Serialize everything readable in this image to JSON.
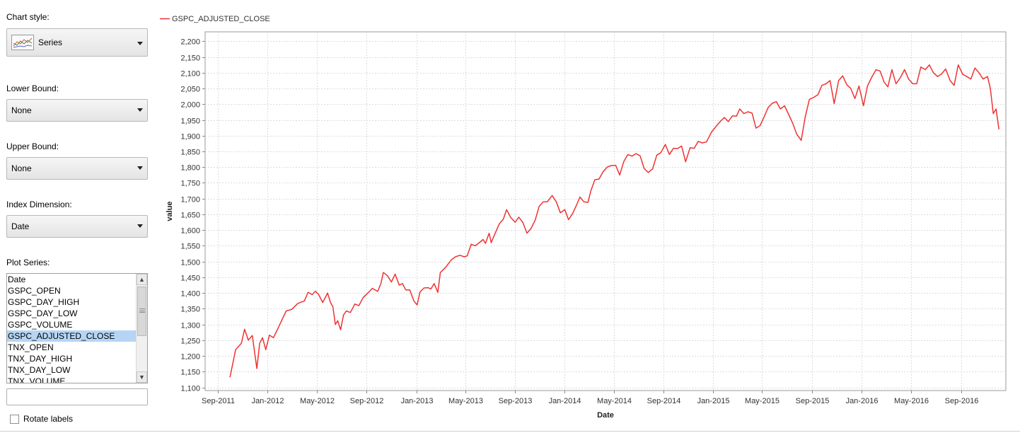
{
  "sidebar": {
    "chart_style_label": "Chart style:",
    "chart_style_value": "Series",
    "chart_style_icon": "line-series-icon",
    "lower_bound_label": "Lower Bound:",
    "lower_bound_value": "None",
    "upper_bound_label": "Upper Bound:",
    "upper_bound_value": "None",
    "index_dimension_label": "Index Dimension:",
    "index_dimension_value": "Date",
    "plot_series_label": "Plot Series:",
    "plot_series_items": [
      "Date",
      "GSPC_OPEN",
      "GSPC_DAY_HIGH",
      "GSPC_DAY_LOW",
      "GSPC_VOLUME",
      "GSPC_ADJUSTED_CLOSE",
      "TNX_OPEN",
      "TNX_DAY_HIGH",
      "TNX_DAY_LOW",
      "TNX_VOLUME"
    ],
    "plot_series_selected": "GSPC_ADJUSTED_CLOSE",
    "filter_value": "",
    "rotate_labels_label": "Rotate labels",
    "rotate_labels_checked": false
  },
  "chart_data": {
    "type": "line",
    "xlabel": "Date",
    "ylabel": "value",
    "legend": "top-left",
    "grid": true,
    "line_color": "#ee3333",
    "ylim": [
      1090,
      2230
    ],
    "y_ticks": [
      1100,
      1150,
      1200,
      1250,
      1300,
      1350,
      1400,
      1450,
      1500,
      1550,
      1600,
      1650,
      1700,
      1750,
      1800,
      1850,
      1900,
      1950,
      2000,
      2050,
      2100,
      2150,
      2200
    ],
    "y_tick_labels": [
      "1,100",
      "1,150",
      "1,200",
      "1,250",
      "1,300",
      "1,350",
      "1,400",
      "1,450",
      "1,500",
      "1,550",
      "1,600",
      "1,650",
      "1,700",
      "1,750",
      "1,800",
      "1,850",
      "1,900",
      "1,950",
      "2,000",
      "2,050",
      "2,100",
      "2,150",
      "2,200"
    ],
    "xlim": [
      "2011-08-01",
      "2016-12-20"
    ],
    "x_ticks": [
      "2011-09-01",
      "2012-01-01",
      "2012-05-01",
      "2012-09-01",
      "2013-01-01",
      "2013-05-01",
      "2013-09-01",
      "2014-01-01",
      "2014-05-01",
      "2014-09-01",
      "2015-01-01",
      "2015-05-01",
      "2015-09-01",
      "2016-01-01",
      "2016-05-01",
      "2016-09-01"
    ],
    "x_tick_labels": [
      "Sep-2011",
      "Jan-2012",
      "May-2012",
      "Sep-2012",
      "Jan-2013",
      "May-2013",
      "Sep-2013",
      "Jan-2014",
      "May-2014",
      "Sep-2014",
      "Jan-2015",
      "May-2015",
      "Sep-2015",
      "Jan-2016",
      "May-2016",
      "Sep-2016"
    ],
    "series": [
      {
        "name": "GSPC_ADJUSTED_CLOSE",
        "points": [
          [
            "2011-10-01",
            1132
          ],
          [
            "2011-10-15",
            1220
          ],
          [
            "2011-10-29",
            1240
          ],
          [
            "2011-11-06",
            1285
          ],
          [
            "2011-11-15",
            1250
          ],
          [
            "2011-11-25",
            1265
          ],
          [
            "2011-12-06",
            1160
          ],
          [
            "2011-12-13",
            1240
          ],
          [
            "2011-12-20",
            1258
          ],
          [
            "2011-12-28",
            1220
          ],
          [
            "2012-01-06",
            1266
          ],
          [
            "2012-01-16",
            1258
          ],
          [
            "2012-01-26",
            1285
          ],
          [
            "2012-02-06",
            1315
          ],
          [
            "2012-02-16",
            1343
          ],
          [
            "2012-03-01",
            1348
          ],
          [
            "2012-03-16",
            1367
          ],
          [
            "2012-04-01",
            1375
          ],
          [
            "2012-04-10",
            1402
          ],
          [
            "2012-04-20",
            1395
          ],
          [
            "2012-04-28",
            1406
          ],
          [
            "2012-05-06",
            1395
          ],
          [
            "2012-05-16",
            1370
          ],
          [
            "2012-05-28",
            1400
          ],
          [
            "2012-06-04",
            1370
          ],
          [
            "2012-06-10",
            1356
          ],
          [
            "2012-06-16",
            1300
          ],
          [
            "2012-06-22",
            1312
          ],
          [
            "2012-06-29",
            1283
          ],
          [
            "2012-07-06",
            1330
          ],
          [
            "2012-07-13",
            1343
          ],
          [
            "2012-07-23",
            1338
          ],
          [
            "2012-08-03",
            1365
          ],
          [
            "2012-08-13",
            1360
          ],
          [
            "2012-08-23",
            1385
          ],
          [
            "2012-09-04",
            1400
          ],
          [
            "2012-09-15",
            1415
          ],
          [
            "2012-09-28",
            1405
          ],
          [
            "2012-10-06",
            1430
          ],
          [
            "2012-10-12",
            1465
          ],
          [
            "2012-10-22",
            1455
          ],
          [
            "2012-11-01",
            1435
          ],
          [
            "2012-11-10",
            1460
          ],
          [
            "2012-11-20",
            1425
          ],
          [
            "2012-11-28",
            1430
          ],
          [
            "2012-12-06",
            1410
          ],
          [
            "2012-12-16",
            1410
          ],
          [
            "2012-12-26",
            1375
          ],
          [
            "2013-01-03",
            1362
          ],
          [
            "2013-01-10",
            1403
          ],
          [
            "2013-01-20",
            1416
          ],
          [
            "2013-01-30",
            1417
          ],
          [
            "2013-02-06",
            1413
          ],
          [
            "2013-02-14",
            1430
          ],
          [
            "2013-02-23",
            1402
          ],
          [
            "2013-03-01",
            1465
          ],
          [
            "2013-03-13",
            1480
          ],
          [
            "2013-03-28",
            1505
          ],
          [
            "2013-04-07",
            1515
          ],
          [
            "2013-04-18",
            1520
          ],
          [
            "2013-04-29",
            1515
          ],
          [
            "2013-05-06",
            1518
          ],
          [
            "2013-05-16",
            1555
          ],
          [
            "2013-05-26",
            1550
          ],
          [
            "2013-06-05",
            1560
          ],
          [
            "2013-06-14",
            1570
          ],
          [
            "2013-06-20",
            1558
          ],
          [
            "2013-06-29",
            1590
          ],
          [
            "2013-07-04",
            1560
          ],
          [
            "2013-07-14",
            1590
          ],
          [
            "2013-07-24",
            1620
          ],
          [
            "2013-08-03",
            1635
          ],
          [
            "2013-08-11",
            1665
          ],
          [
            "2013-08-21",
            1640
          ],
          [
            "2013-09-01",
            1625
          ],
          [
            "2013-09-10",
            1641
          ],
          [
            "2013-09-20",
            1624
          ],
          [
            "2013-09-30",
            1590
          ],
          [
            "2013-10-10",
            1605
          ],
          [
            "2013-10-20",
            1631
          ],
          [
            "2013-10-30",
            1675
          ],
          [
            "2013-11-09",
            1690
          ],
          [
            "2013-11-19",
            1690
          ],
          [
            "2013-12-01",
            1710
          ],
          [
            "2013-12-11",
            1690
          ],
          [
            "2013-12-21",
            1655
          ],
          [
            "2014-01-01",
            1665
          ],
          [
            "2014-01-10",
            1633
          ],
          [
            "2014-01-20",
            1652
          ],
          [
            "2014-01-30",
            1680
          ],
          [
            "2014-02-07",
            1705
          ],
          [
            "2014-02-17",
            1690
          ],
          [
            "2014-02-27",
            1688
          ],
          [
            "2014-03-06",
            1725
          ],
          [
            "2014-03-16",
            1760
          ],
          [
            "2014-03-26",
            1762
          ],
          [
            "2014-04-05",
            1785
          ],
          [
            "2014-04-15",
            1800
          ],
          [
            "2014-04-25",
            1805
          ],
          [
            "2014-05-06",
            1806
          ],
          [
            "2014-05-16",
            1775
          ],
          [
            "2014-05-26",
            1818
          ],
          [
            "2014-06-05",
            1840
          ],
          [
            "2014-06-15",
            1835
          ],
          [
            "2014-06-25",
            1843
          ],
          [
            "2014-07-05",
            1836
          ],
          [
            "2014-07-15",
            1796
          ],
          [
            "2014-07-25",
            1783
          ],
          [
            "2014-08-05",
            1795
          ],
          [
            "2014-08-15",
            1838
          ],
          [
            "2014-08-25",
            1846
          ],
          [
            "2014-09-05",
            1872
          ],
          [
            "2014-09-15",
            1840
          ],
          [
            "2014-09-25",
            1860
          ],
          [
            "2014-10-05",
            1859
          ],
          [
            "2014-10-15",
            1867
          ],
          [
            "2014-10-25",
            1817
          ],
          [
            "2014-11-05",
            1862
          ],
          [
            "2014-11-15",
            1860
          ],
          [
            "2014-11-25",
            1882
          ],
          [
            "2014-12-05",
            1877
          ],
          [
            "2014-12-15",
            1880
          ],
          [
            "2014-12-28",
            1912
          ],
          [
            "2015-01-08",
            1930
          ],
          [
            "2015-01-18",
            1945
          ],
          [
            "2015-01-28",
            1958
          ],
          [
            "2015-02-07",
            1945
          ],
          [
            "2015-02-17",
            1963
          ],
          [
            "2015-02-27",
            1962
          ],
          [
            "2015-03-07",
            1985
          ],
          [
            "2015-03-17",
            1970
          ],
          [
            "2015-03-27",
            1976
          ],
          [
            "2015-04-06",
            1972
          ],
          [
            "2015-04-16",
            1924
          ],
          [
            "2015-04-26",
            1932
          ],
          [
            "2015-05-06",
            1960
          ],
          [
            "2015-05-16",
            1990
          ],
          [
            "2015-05-26",
            2003
          ],
          [
            "2015-06-05",
            2008
          ],
          [
            "2015-06-15",
            1985
          ],
          [
            "2015-06-25",
            1995
          ],
          [
            "2015-07-05",
            1968
          ],
          [
            "2015-07-15",
            1940
          ],
          [
            "2015-07-25",
            1905
          ],
          [
            "2015-08-05",
            1885
          ],
          [
            "2015-08-15",
            1960
          ],
          [
            "2015-08-25",
            2015
          ],
          [
            "2015-09-05",
            2022
          ],
          [
            "2015-09-15",
            2030
          ],
          [
            "2015-09-25",
            2060
          ],
          [
            "2015-10-05",
            2065
          ],
          [
            "2015-10-15",
            2075
          ],
          [
            "2015-10-25",
            2002
          ],
          [
            "2015-11-05",
            2075
          ],
          [
            "2015-11-15",
            2090
          ],
          [
            "2015-11-25",
            2062
          ],
          [
            "2015-12-05",
            2050
          ],
          [
            "2015-12-15",
            2018
          ],
          [
            "2015-12-25",
            2058
          ],
          [
            "2016-01-05",
            1995
          ],
          [
            "2016-01-15",
            2058
          ],
          [
            "2016-01-25",
            2085
          ],
          [
            "2016-02-05",
            2110
          ],
          [
            "2016-02-15",
            2105
          ],
          [
            "2016-02-25",
            2070
          ],
          [
            "2016-03-05",
            2055
          ],
          [
            "2016-03-15",
            2110
          ],
          [
            "2016-03-25",
            2065
          ],
          [
            "2016-04-05",
            2085
          ],
          [
            "2016-04-15",
            2110
          ],
          [
            "2016-04-25",
            2080
          ],
          [
            "2016-05-05",
            2065
          ],
          [
            "2016-05-15",
            2065
          ],
          [
            "2016-05-25",
            2118
          ],
          [
            "2016-06-05",
            2110
          ],
          [
            "2016-06-15",
            2125
          ],
          [
            "2016-06-25",
            2100
          ],
          [
            "2016-07-05",
            2088
          ],
          [
            "2016-07-15",
            2096
          ],
          [
            "2016-07-25",
            2112
          ],
          [
            "2016-08-05",
            2075
          ],
          [
            "2016-08-15",
            2060
          ],
          [
            "2016-08-25",
            2125
          ],
          [
            "2016-09-05",
            2095
          ],
          [
            "2016-09-15",
            2088
          ],
          [
            "2016-09-25",
            2080
          ],
          [
            "2016-10-05",
            2115
          ],
          [
            "2016-10-15",
            2100
          ],
          [
            "2016-10-25",
            2080
          ],
          [
            "2016-11-05",
            2088
          ],
          [
            "2016-11-12",
            2050
          ],
          [
            "2016-11-19",
            1970
          ],
          [
            "2016-11-26",
            1985
          ],
          [
            "2016-12-03",
            1920
          ]
        ]
      }
    ]
  }
}
